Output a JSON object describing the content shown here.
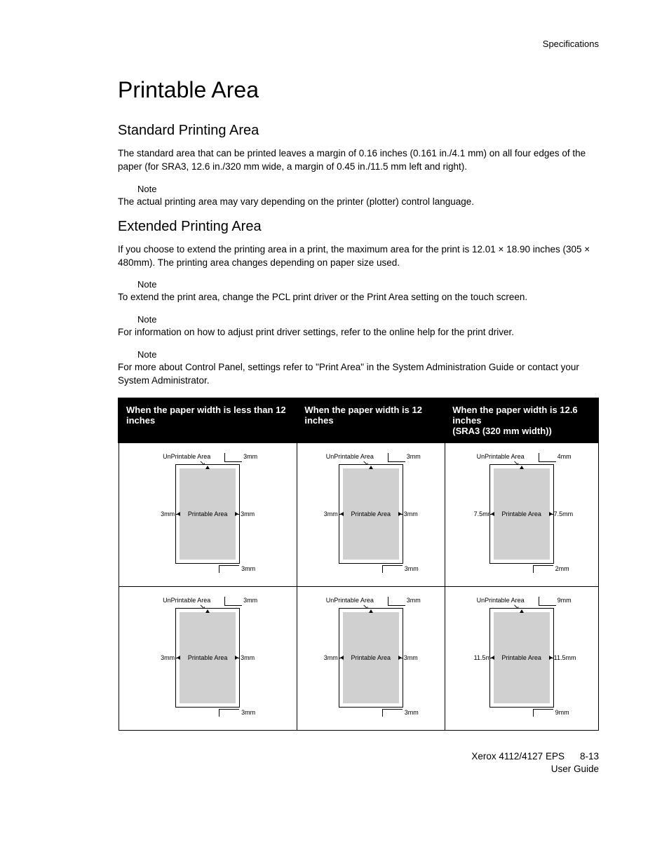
{
  "header": {
    "section": "Specifications"
  },
  "title": "Printable Area",
  "s1": {
    "heading": "Standard Printing Area",
    "p1": "The standard area that can be printed leaves a margin of 0.16 inches (0.161 in./4.1 mm) on all four edges of the paper (for SRA3, 12.6 in./320 mm wide, a margin of 0.45 in./11.5 mm left and right).",
    "note": "Note",
    "p2": "The actual printing area may vary depending on the printer (plotter) control language."
  },
  "s2": {
    "heading": "Extended Printing Area",
    "p1": "If you choose to extend the printing area in a print, the maximum area for the print is 12.01 × 18.90 inches (305 × 480mm). The printing area changes depending on paper size used.",
    "note1": "Note",
    "p2": "To extend the print area, change the PCL print driver or the Print Area setting on the touch screen.",
    "note2": "Note",
    "p3": "For information on how to adjust print driver settings, refer to the online help for the print driver.",
    "note3": "Note",
    "p4": "For more about Control Panel, settings refer to \"Print Area\" in the System Administration Guide or contact your System Administrator."
  },
  "table": {
    "h1": "When the paper width is less than 12 inches",
    "h2": "When the paper width is 12 inches",
    "h3": "When the paper width is 12.6 inches\n(SRA3 (320 mm width))",
    "cells": [
      [
        {
          "unp": "UnPrintable Area",
          "top": "3mm",
          "left": "3mm",
          "right": "3mm",
          "bottom": "3mm",
          "label": "Printable Area"
        },
        {
          "unp": "UnPrintable Area",
          "top": "3mm",
          "left": "3mm",
          "right": "3mm",
          "bottom": "3mm",
          "label": "Printable Area"
        },
        {
          "unp": "UnPrintable Area",
          "top": "4mm",
          "left": "7.5mm",
          "right": "7.5mm",
          "bottom": "2mm",
          "label": "Printable Area"
        }
      ],
      [
        {
          "unp": "UnPrintable Area",
          "top": "3mm",
          "left": "3mm",
          "right": "3mm",
          "bottom": "3mm",
          "label": "Printable Area"
        },
        {
          "unp": "UnPrintable Area",
          "top": "3mm",
          "left": "3mm",
          "right": "3mm",
          "bottom": "3mm",
          "label": "Printable Area"
        },
        {
          "unp": "UnPrintable Area",
          "top": "9mm",
          "left": "11.5mm",
          "right": "11.5mm",
          "bottom": "9mm",
          "label": "Printable Area"
        }
      ]
    ],
    "colors": {
      "paper_bg": "#ffffff",
      "printable_bg": "#d0d0d0",
      "border": "#000000",
      "header_bg": "#000000",
      "header_fg": "#ffffff"
    }
  },
  "footer": {
    "product": "Xerox 4112/4127 EPS",
    "doc": "User Guide",
    "page": "8-13"
  }
}
